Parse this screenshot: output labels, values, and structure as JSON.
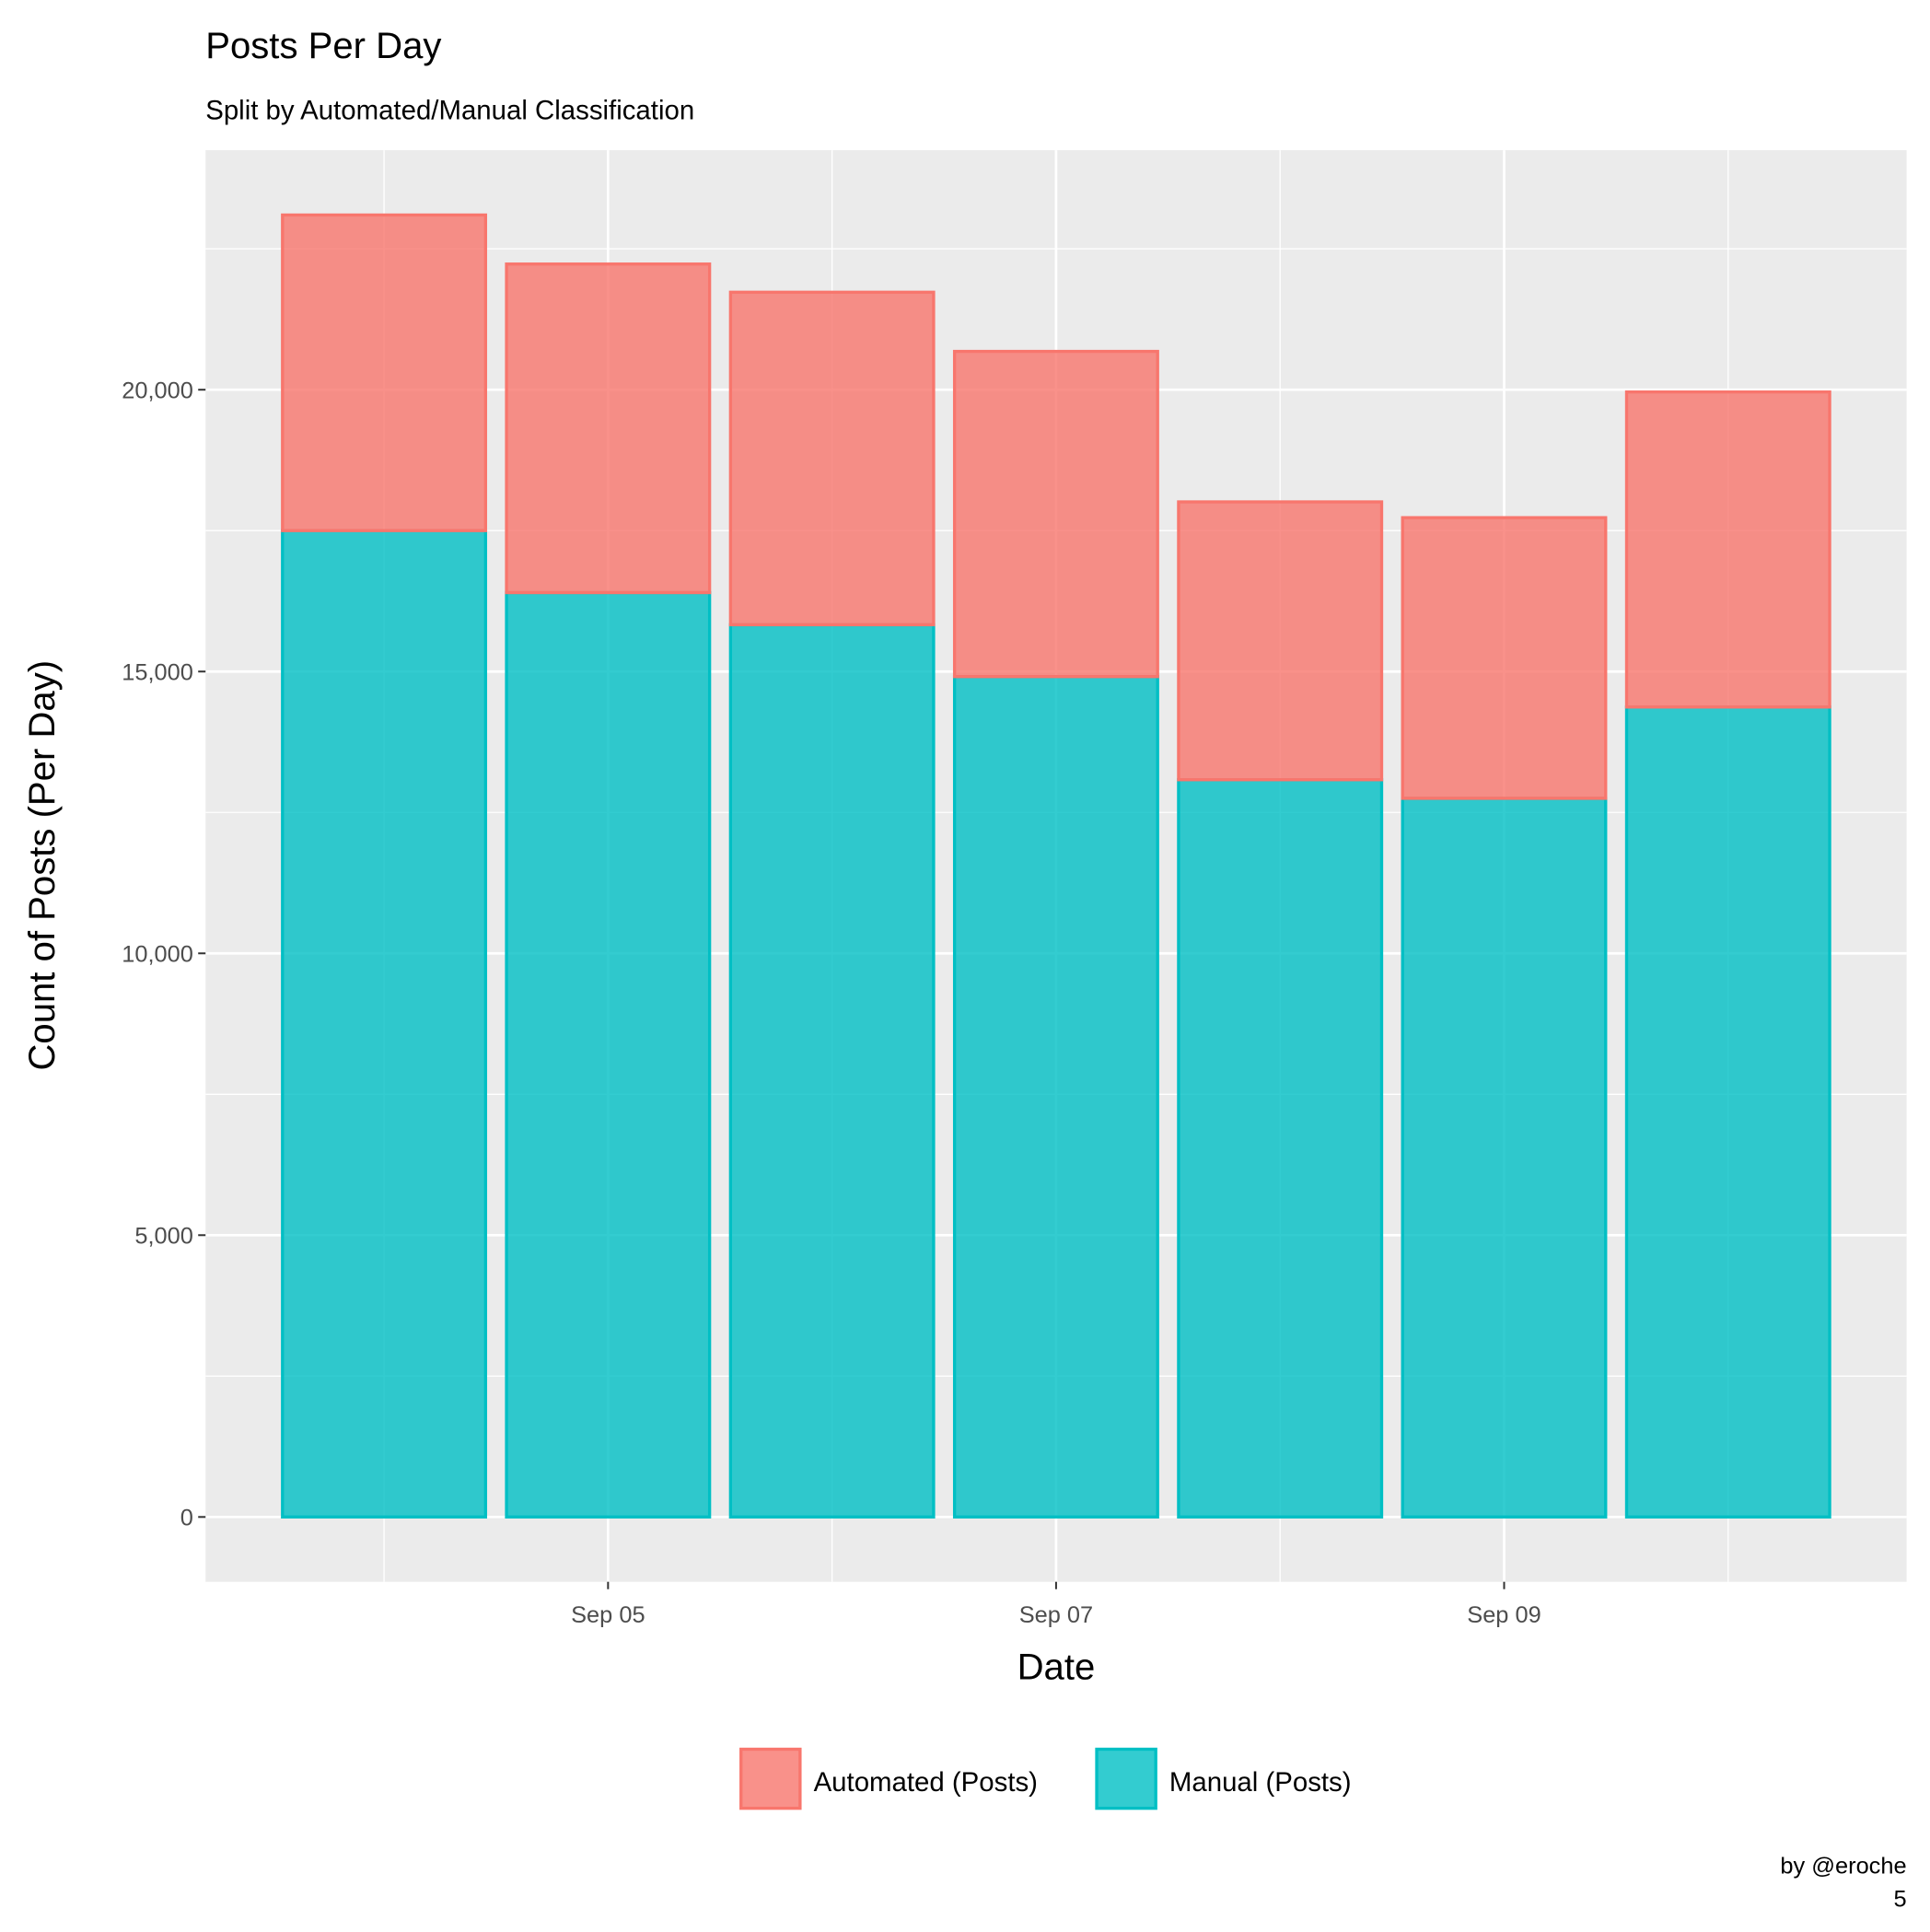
{
  "chart_data": {
    "type": "bar",
    "stacked": true,
    "title": "Posts Per Day",
    "subtitle": "Split by Automated/Manual Classification",
    "xlabel": "Date",
    "ylabel": "Count of Posts (Per Day)",
    "categories": [
      "Sep 04",
      "Sep 05",
      "Sep 06",
      "Sep 07",
      "Sep 08",
      "Sep 09",
      "Sep 10"
    ],
    "x_tick_labels": [
      "Sep 05",
      "Sep 07",
      "Sep 09"
    ],
    "y_tick_labels": [
      "0",
      "5,000",
      "10,000",
      "15,000",
      "20,000"
    ],
    "y_ticks": [
      0,
      5000,
      10000,
      15000,
      20000
    ],
    "ylim": [
      -1150,
      24250
    ],
    "grid": true,
    "legend_position": "bottom",
    "series": [
      {
        "name": "Manual (Posts)",
        "color": "#00BFC4",
        "values": [
          17500,
          16400,
          15830,
          14910,
          13080,
          12750,
          14370
        ]
      },
      {
        "name": "Automated (Posts)",
        "color": "#F8766D",
        "values": [
          5600,
          5830,
          5900,
          5770,
          4930,
          4980,
          5590
        ]
      }
    ],
    "legend": [
      "Automated (Posts)",
      "Manual (Posts)"
    ],
    "caption": "by @eroche",
    "caption_line2": "5"
  }
}
